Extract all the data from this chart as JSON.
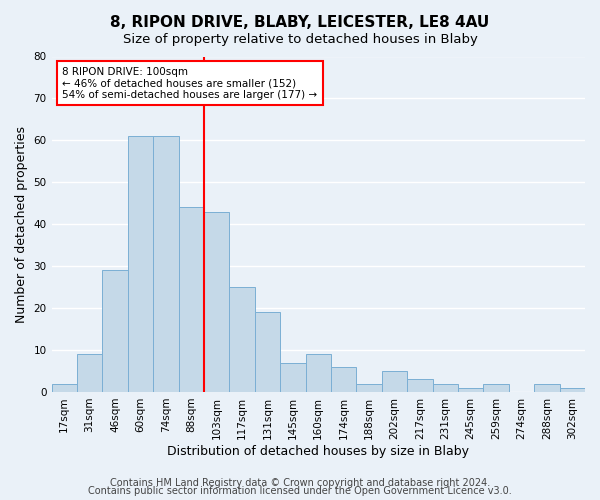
{
  "title": "8, RIPON DRIVE, BLABY, LEICESTER, LE8 4AU",
  "subtitle": "Size of property relative to detached houses in Blaby",
  "xlabel": "Distribution of detached houses by size in Blaby",
  "ylabel": "Number of detached properties",
  "bar_labels": [
    "17sqm",
    "31sqm",
    "46sqm",
    "60sqm",
    "74sqm",
    "88sqm",
    "103sqm",
    "117sqm",
    "131sqm",
    "145sqm",
    "160sqm",
    "174sqm",
    "188sqm",
    "202sqm",
    "217sqm",
    "231sqm",
    "245sqm",
    "259sqm",
    "274sqm",
    "288sqm",
    "302sqm"
  ],
  "bar_values": [
    2,
    9,
    29,
    61,
    61,
    44,
    43,
    25,
    19,
    7,
    9,
    6,
    2,
    5,
    3,
    2,
    1,
    2,
    0,
    2,
    1
  ],
  "bar_color": "#c5d9e8",
  "bar_edge_color": "#7bafd4",
  "vline_x": 6.0,
  "vline_color": "red",
  "annotation_title": "8 RIPON DRIVE: 100sqm",
  "annotation_line1": "← 46% of detached houses are smaller (152)",
  "annotation_line2": "54% of semi-detached houses are larger (177) →",
  "annotation_box_color": "white",
  "annotation_box_edge_color": "red",
  "ylim": [
    0,
    80
  ],
  "footer1": "Contains HM Land Registry data © Crown copyright and database right 2024.",
  "footer2": "Contains public sector information licensed under the Open Government Licence v3.0.",
  "background_color": "#eaf1f8",
  "plot_background_color": "#eaf1f8",
  "grid_color": "white",
  "title_fontsize": 11,
  "subtitle_fontsize": 9.5,
  "xlabel_fontsize": 9,
  "ylabel_fontsize": 9,
  "tick_fontsize": 7.5,
  "footer_fontsize": 7
}
